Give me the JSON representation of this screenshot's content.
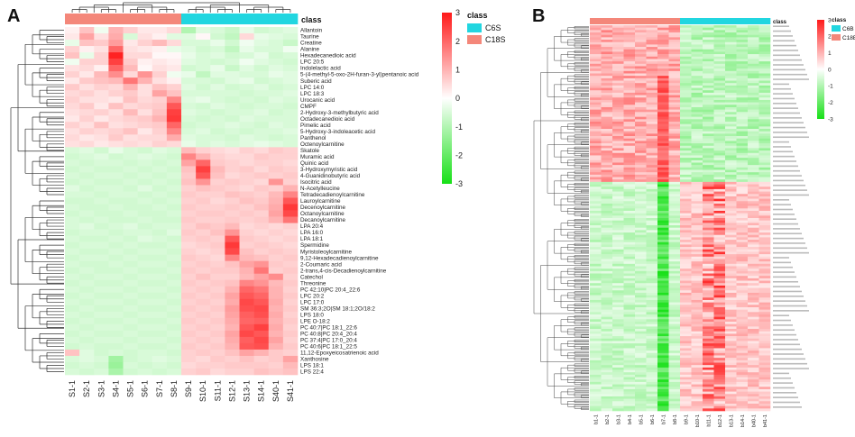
{
  "chart_data": [
    {
      "type": "heatmap",
      "panel_label": "A",
      "class_title": "class",
      "legend_title": "class",
      "classes": [
        {
          "name": "C6S",
          "color": "#21d6e0"
        },
        {
          "name": "C18S",
          "color": "#f4877a"
        }
      ],
      "colorbar": {
        "min": -3,
        "max": 3,
        "ticks": [
          "3",
          "2",
          "1",
          "0",
          "-1",
          "-2",
          "-3"
        ],
        "low_color": "#17e017",
        "mid_color": "#ffffff",
        "high_color": "#ff1a1a"
      },
      "columns": [
        "S1-1",
        "S2-1",
        "S3-1",
        "S4-1",
        "S5-1",
        "S6-1",
        "S7-1",
        "S8-1",
        "S9-1",
        "S10-1",
        "S11-1",
        "S12-1",
        "S13-1",
        "S14-1",
        "S40-1",
        "S41-1"
      ],
      "column_class": [
        "C18S",
        "C18S",
        "C18S",
        "C18S",
        "C18S",
        "C18S",
        "C18S",
        "C18S",
        "C6S",
        "C6S",
        "C6S",
        "C6S",
        "C6S",
        "C6S",
        "C6S",
        "C6S"
      ],
      "rows": [
        "Allantoin",
        "Taurine",
        "Creatine",
        "Alanine",
        "Hexadecanedioic acid",
        "LPC 20:5",
        "Indolelactic acid",
        "5-(4-methyl-5-oxo-2H-furan-3-yl)pentanoic acid",
        "Suberic acid",
        "LPC 14:0",
        "LPC 18:3",
        "Urocanic acid",
        "CMPF",
        "2-Hydroxy-3-methylbutyric acid",
        "Octadecanedioic acid",
        "Pimelic acid",
        "5-Hydroxy-3-indoleacetic acid",
        "Panthenol",
        "Octenoylcarnitine",
        "Skatole",
        "Muramic acid",
        "Quinic acid",
        "3-Hydroxymyristic acid",
        "4-Guanidinobutyric acid",
        "Isocitric acid",
        "N-Acetylleucine",
        "Tetradecadienoylcarnitine",
        "Lauroylcarnitine",
        "Decenoylcarnitine",
        "Octanoylcarnitine",
        "Decanoylcarnitine",
        "LPA 20:4",
        "LPA 16:0",
        "LPA 18:1",
        "Spermidine",
        "Myristoleoylcarnitine",
        "9,12-Hexadecadienoylcarnitine",
        "2-Coumaric acid",
        "2-trans,4-cis-Decadienoylcarnitine",
        "Catechol",
        "Threonine",
        "PC 42:10|PC 20:4_22:6",
        "LPC 20:2",
        "LPC 17:0",
        "SM 36:3;2O|SM 18:1;2O/18:2",
        "LPS 18:0",
        "LPE O-18:2",
        "PC 40:7|PC 18:1_22:6",
        "PC 40:8|PC 20:4_20:4",
        "PC 37:4|PC 17:0_20:4",
        "PC 40:6|PC 18:1_22:5",
        "11,12-Epoxyeicosatrienoic acid",
        "Xanthosine",
        "LPS 18:1",
        "LPS 22:4"
      ],
      "pattern": "Upper block (Allantoin to Octenoylcarnitine) elevated in C18S samples S1-1 to S8-1 and lower in C6S; lower block (Skatole to LPS 22:4) elevated in C6S samples S9-1 to S41-1 and lower in C18S. Approximate z-scores are listed per row in matrix_approx.",
      "matrix_approx": [
        [
          0.2,
          0.8,
          -0.2,
          1.0,
          0.6,
          0.3,
          0.3,
          0.5,
          -1.0,
          -0.4,
          -0.5,
          -0.7,
          -0.3,
          -0.6,
          -0.5,
          -0.4
        ],
        [
          0.3,
          1.2,
          0.4,
          1.1,
          -0.5,
          0.4,
          0.2,
          -0.4,
          -0.4,
          0.1,
          -0.6,
          -0.8,
          0.5,
          -0.3,
          -0.4,
          -0.5
        ],
        [
          -0.3,
          0.8,
          0.7,
          1.3,
          0.3,
          0.6,
          0.9,
          0.5,
          -0.5,
          -0.5,
          -0.3,
          -0.6,
          -0.2,
          -0.4,
          -0.5,
          -0.7
        ],
        [
          0.6,
          0.2,
          0.4,
          2.0,
          0.4,
          0.3,
          0.2,
          -0.3,
          -0.4,
          -0.6,
          -0.5,
          -0.8,
          -0.3,
          -0.5,
          -0.5,
          -0.2
        ],
        [
          0.8,
          -0.3,
          0.6,
          2.9,
          0.5,
          0.5,
          0.1,
          0.1,
          -0.3,
          -0.5,
          -0.4,
          -0.6,
          -0.5,
          -0.3,
          -0.6,
          -0.5
        ],
        [
          -0.2,
          0.6,
          0.6,
          2.5,
          0.7,
          0.2,
          0.3,
          0.2,
          -0.4,
          -0.5,
          -0.6,
          -0.5,
          -0.2,
          -0.4,
          -0.5,
          -0.6
        ],
        [
          0.4,
          0.5,
          0.2,
          2.0,
          0.9,
          0.1,
          0.4,
          0.3,
          -0.6,
          -0.5,
          -0.3,
          -0.7,
          -0.4,
          -0.6,
          -0.4,
          -0.5
        ],
        [
          0.6,
          0.3,
          0.9,
          1.5,
          0.5,
          1.4,
          0.6,
          -0.2,
          -0.3,
          -0.8,
          -0.4,
          -0.4,
          -0.5,
          -0.5,
          -0.3,
          -0.4
        ],
        [
          0.3,
          0.7,
          0.8,
          0.9,
          1.8,
          1.0,
          0.4,
          0.2,
          -0.5,
          -0.5,
          -0.6,
          -0.4,
          -0.3,
          -0.6,
          -0.5,
          -0.4
        ],
        [
          0.7,
          0.4,
          0.6,
          0.5,
          1.0,
          0.4,
          0.8,
          0.6,
          -0.4,
          -0.6,
          -0.4,
          -0.6,
          -0.5,
          -0.4,
          -0.6,
          -0.5
        ],
        [
          0.5,
          0.6,
          0.4,
          0.6,
          0.7,
          0.4,
          1.2,
          0.8,
          -0.5,
          -0.5,
          -0.5,
          -0.5,
          -0.6,
          -0.5,
          -0.5,
          -0.4
        ],
        [
          0.6,
          0.4,
          0.4,
          0.3,
          0.8,
          0.5,
          0.6,
          1.6,
          -0.4,
          -0.3,
          -0.5,
          -0.6,
          -0.5,
          -0.6,
          -0.4,
          -0.5
        ],
        [
          0.5,
          0.7,
          0.3,
          0.8,
          0.5,
          0.6,
          0.7,
          2.2,
          -0.5,
          -0.6,
          -0.4,
          -0.5,
          -0.6,
          -0.5,
          -0.5,
          -0.6
        ],
        [
          0.4,
          0.5,
          0.6,
          0.4,
          0.9,
          0.4,
          0.8,
          2.5,
          -0.4,
          -0.5,
          -0.6,
          -0.5,
          -0.5,
          -0.4,
          -0.6,
          -0.5
        ],
        [
          0.3,
          0.6,
          0.3,
          0.5,
          0.6,
          0.7,
          1.0,
          2.6,
          -0.5,
          -0.6,
          -0.5,
          -0.6,
          -0.4,
          -0.5,
          -0.5,
          -0.5
        ],
        [
          0.6,
          0.4,
          0.8,
          0.4,
          0.5,
          0.6,
          0.7,
          2.0,
          -0.6,
          -0.5,
          -0.5,
          -0.4,
          -0.5,
          -0.6,
          -0.4,
          -0.5
        ],
        [
          0.4,
          0.6,
          0.5,
          0.6,
          0.8,
          0.3,
          0.6,
          1.6,
          -0.5,
          -0.4,
          -0.6,
          -0.5,
          -0.6,
          -0.5,
          -0.5,
          -0.4
        ],
        [
          0.5,
          0.3,
          0.4,
          0.7,
          0.4,
          0.5,
          0.5,
          1.1,
          -0.4,
          -0.5,
          -0.5,
          -0.6,
          -0.4,
          -0.5,
          -0.6,
          -0.5
        ],
        [
          0.4,
          0.5,
          0.3,
          0.4,
          0.5,
          0.4,
          0.6,
          0.5,
          -0.3,
          -0.5,
          -0.4,
          -0.5,
          -0.4,
          -0.3,
          -0.4,
          -0.5
        ],
        [
          -0.5,
          -0.4,
          -0.6,
          -0.3,
          -0.5,
          -0.6,
          -0.4,
          -0.5,
          0.9,
          0.6,
          0.5,
          0.4,
          0.6,
          0.5,
          0.7,
          0.6
        ],
        [
          -0.6,
          -0.5,
          -0.4,
          -0.6,
          -0.5,
          -0.4,
          -0.5,
          -0.6,
          1.6,
          1.0,
          0.6,
          0.5,
          0.5,
          0.7,
          0.6,
          0.6
        ],
        [
          -0.5,
          -0.6,
          -0.5,
          -0.5,
          -0.6,
          -0.5,
          -0.6,
          -0.5,
          1.2,
          2.0,
          0.7,
          0.6,
          0.5,
          0.6,
          0.6,
          0.5
        ],
        [
          -0.6,
          -0.5,
          -0.6,
          -0.6,
          -0.5,
          -0.6,
          -0.5,
          -0.6,
          0.8,
          2.5,
          0.9,
          0.6,
          0.7,
          0.5,
          0.7,
          0.6
        ],
        [
          -0.5,
          -0.6,
          -0.5,
          -0.5,
          -0.6,
          -0.5,
          -0.6,
          -0.5,
          0.7,
          2.2,
          0.8,
          0.5,
          0.6,
          0.7,
          0.6,
          0.7
        ],
        [
          -0.6,
          -0.5,
          -0.6,
          -0.6,
          -0.5,
          -0.6,
          -0.5,
          -0.6,
          0.8,
          1.4,
          0.6,
          0.7,
          0.6,
          0.5,
          1.4,
          0.6
        ],
        [
          -0.4,
          -0.6,
          -0.5,
          -0.5,
          -0.6,
          -0.4,
          -0.6,
          -0.5,
          0.6,
          0.8,
          0.7,
          0.6,
          0.5,
          0.7,
          0.6,
          1.0
        ],
        [
          -0.5,
          -0.5,
          -0.6,
          -0.5,
          -0.5,
          -0.6,
          -0.5,
          -0.6,
          0.7,
          0.6,
          0.6,
          0.8,
          0.7,
          0.6,
          0.9,
          1.6
        ],
        [
          -0.6,
          -0.6,
          -0.5,
          -0.6,
          -0.6,
          -0.5,
          -0.6,
          -0.5,
          0.6,
          0.7,
          0.5,
          0.6,
          0.8,
          0.7,
          1.0,
          2.2
        ],
        [
          -0.5,
          -0.6,
          -0.6,
          -0.5,
          -0.6,
          -0.6,
          -0.5,
          -0.6,
          0.7,
          0.6,
          0.6,
          0.7,
          0.6,
          0.8,
          1.1,
          2.6
        ],
        [
          -0.6,
          -0.5,
          -0.6,
          -0.6,
          -0.5,
          -0.6,
          -0.6,
          -0.5,
          0.6,
          0.7,
          0.7,
          0.6,
          0.7,
          0.6,
          1.2,
          2.4
        ],
        [
          -0.5,
          -0.6,
          -0.5,
          -0.6,
          -0.6,
          -0.5,
          -0.6,
          -0.6,
          0.7,
          0.6,
          0.6,
          0.7,
          0.6,
          0.7,
          1.0,
          1.8
        ],
        [
          -0.5,
          -0.4,
          -0.6,
          -0.5,
          -0.4,
          -0.6,
          -0.5,
          -0.5,
          0.6,
          0.8,
          0.7,
          0.9,
          0.5,
          0.6,
          0.5,
          0.6
        ],
        [
          -0.6,
          -0.5,
          -0.5,
          -0.6,
          -0.5,
          -0.5,
          -0.6,
          -0.4,
          0.7,
          0.6,
          0.8,
          1.4,
          0.6,
          0.5,
          0.6,
          0.5
        ],
        [
          -0.5,
          -0.6,
          -0.6,
          -0.5,
          -0.6,
          -0.4,
          -0.5,
          -0.6,
          0.6,
          0.7,
          0.6,
          2.2,
          0.7,
          0.6,
          0.5,
          0.6
        ],
        [
          -0.6,
          -0.5,
          -0.5,
          -0.6,
          -0.5,
          -0.6,
          -0.6,
          -0.5,
          0.5,
          0.6,
          0.7,
          2.6,
          0.6,
          0.7,
          0.6,
          0.5
        ],
        [
          -0.5,
          -0.6,
          -0.6,
          -0.5,
          -0.6,
          -0.5,
          -0.5,
          -0.6,
          0.6,
          0.5,
          0.6,
          2.4,
          0.8,
          0.6,
          0.7,
          0.6
        ],
        [
          -0.6,
          -0.5,
          -0.5,
          -0.6,
          -0.5,
          -0.6,
          -0.6,
          -0.5,
          0.7,
          0.6,
          0.5,
          1.6,
          0.9,
          0.8,
          0.6,
          0.7
        ],
        [
          -0.5,
          -0.6,
          -0.6,
          -0.5,
          -0.6,
          -0.5,
          -0.5,
          -0.6,
          0.6,
          0.7,
          0.6,
          0.8,
          1.2,
          1.4,
          0.7,
          0.6
        ],
        [
          -0.6,
          -0.5,
          -0.6,
          -0.6,
          -0.5,
          -0.6,
          -0.6,
          -0.5,
          0.7,
          0.6,
          0.7,
          0.7,
          1.0,
          1.8,
          0.6,
          0.7
        ],
        [
          -0.5,
          -0.6,
          -0.5,
          -0.5,
          -0.6,
          -0.5,
          -0.5,
          -0.6,
          0.6,
          0.8,
          0.6,
          0.6,
          0.9,
          1.2,
          1.5,
          0.6
        ],
        [
          -0.6,
          -0.5,
          -0.6,
          -0.6,
          -0.5,
          -0.6,
          -0.6,
          -0.5,
          0.7,
          0.6,
          0.7,
          0.8,
          1.6,
          1.4,
          0.9,
          0.7
        ],
        [
          -0.5,
          -0.6,
          -0.5,
          -0.5,
          -0.6,
          -0.5,
          -0.5,
          -0.6,
          0.6,
          0.7,
          0.6,
          1.0,
          2.0,
          1.8,
          1.0,
          0.6
        ],
        [
          -0.6,
          -0.5,
          -0.6,
          -0.6,
          -0.5,
          -0.6,
          -0.6,
          -0.5,
          0.7,
          0.6,
          0.7,
          1.2,
          2.2,
          2.0,
          1.0,
          0.7
        ],
        [
          -0.5,
          -0.6,
          -0.5,
          -0.5,
          -0.6,
          -0.5,
          -0.5,
          -0.6,
          0.6,
          0.7,
          0.6,
          1.1,
          2.4,
          2.2,
          1.1,
          0.6
        ],
        [
          -0.6,
          -0.5,
          -0.6,
          -0.6,
          -0.5,
          -0.6,
          -0.6,
          -0.5,
          0.7,
          0.6,
          0.7,
          1.3,
          2.3,
          2.4,
          1.0,
          0.7
        ],
        [
          -0.5,
          -0.6,
          -0.5,
          -0.5,
          -0.6,
          -0.5,
          -0.5,
          -0.6,
          0.6,
          0.7,
          0.6,
          1.2,
          2.1,
          2.3,
          1.1,
          0.6
        ],
        [
          -0.6,
          -0.5,
          -0.6,
          -0.6,
          -0.5,
          -0.6,
          -0.6,
          -0.5,
          0.7,
          0.6,
          0.7,
          1.1,
          2.0,
          2.1,
          1.0,
          0.7
        ],
        [
          -0.5,
          -0.6,
          -0.5,
          -0.5,
          -0.6,
          -0.5,
          -0.5,
          -0.6,
          0.6,
          0.7,
          0.6,
          1.0,
          2.2,
          2.5,
          1.1,
          0.6
        ],
        [
          -0.6,
          -0.5,
          -0.6,
          -0.6,
          -0.5,
          -0.6,
          -0.6,
          -0.5,
          0.7,
          0.6,
          0.7,
          1.2,
          2.4,
          2.2,
          1.0,
          0.7
        ],
        [
          -0.5,
          -0.6,
          -0.5,
          -0.5,
          -0.6,
          -0.5,
          -0.5,
          -0.6,
          0.6,
          0.7,
          0.6,
          1.1,
          2.1,
          2.4,
          1.2,
          0.6
        ],
        [
          -0.6,
          -0.5,
          -0.6,
          -0.6,
          -0.5,
          -0.6,
          -0.6,
          -0.5,
          0.7,
          0.6,
          0.7,
          1.0,
          2.2,
          2.3,
          1.0,
          0.7
        ],
        [
          0.8,
          -0.4,
          -0.6,
          -0.5,
          -0.6,
          -0.5,
          -0.5,
          -0.6,
          0.6,
          0.7,
          0.6,
          0.8,
          1.2,
          1.0,
          0.7,
          0.6
        ],
        [
          -0.5,
          -0.4,
          -0.5,
          -1.2,
          -0.6,
          -0.5,
          -0.4,
          -0.5,
          0.6,
          0.5,
          0.7,
          0.6,
          0.8,
          0.6,
          0.7,
          1.2
        ],
        [
          -0.6,
          -0.5,
          -0.6,
          -1.3,
          -0.5,
          -0.6,
          -0.5,
          -0.6,
          0.5,
          0.6,
          0.6,
          0.7,
          0.7,
          0.7,
          0.6,
          0.9
        ],
        [
          -0.5,
          -0.6,
          -0.5,
          -1.1,
          -0.6,
          -0.5,
          -0.6,
          -0.5,
          0.6,
          0.7,
          0.5,
          0.6,
          0.6,
          0.8,
          0.7,
          0.8
        ]
      ]
    },
    {
      "type": "heatmap",
      "panel_label": "B",
      "class_title": "class",
      "classes": [
        {
          "name": "C6B",
          "color": "#21d6e0"
        },
        {
          "name": "C18B",
          "color": "#f4877a"
        }
      ],
      "colorbar": {
        "min": -3,
        "max": 3,
        "ticks": [
          "3",
          "2",
          "1",
          "0",
          "-1",
          "-2",
          "-3"
        ],
        "low_color": "#17e017",
        "mid_color": "#ffffff",
        "high_color": "#ff1a1a"
      },
      "columns": [
        "b1-1",
        "b2-1",
        "b3-1",
        "b4-1",
        "b5-1",
        "b6-1",
        "b7-1",
        "b8-1",
        "b9-1",
        "b10-1",
        "b11-1",
        "b12-1",
        "b13-1",
        "b14-1",
        "b40-1",
        "b41-1"
      ],
      "column_class": [
        "C18B",
        "C18B",
        "C18B",
        "C18B",
        "C18B",
        "C18B",
        "C18B",
        "C18B",
        "C6B",
        "C6B",
        "C6B",
        "C6B",
        "C6B",
        "C6B",
        "C6B",
        "C6B"
      ],
      "n_rows": 160,
      "row_labels_legible": false,
      "pattern": "Top block (about 65 rows) higher in C18B samples b1-1 to b8-1 and lower (green) in C6B; bottom block (about 95 rows) higher in C6B samples b9-1 to b41-1, with a strongly negative (green) column at b7-1 and strongly positive columns at b11-1 and b12-1."
    }
  ]
}
